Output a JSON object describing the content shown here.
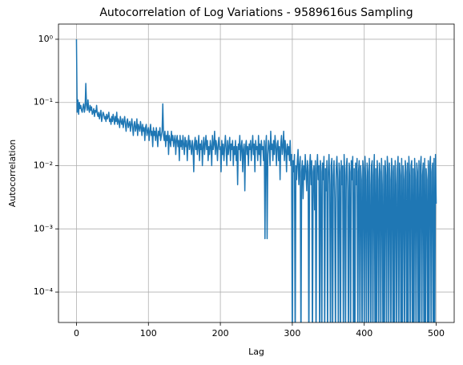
{
  "chart_data": {
    "type": "line",
    "title": "Autocorrelation of Log Variations - 9589616us Sampling",
    "x_label": "Lag",
    "y_label": "Autocorrelation",
    "log_y": true,
    "grid": true,
    "xlim": [
      -25,
      525
    ],
    "xticks": [
      0,
      100,
      200,
      300,
      400,
      500
    ],
    "ylim": [
      3.3e-05,
      1.74
    ],
    "yticks": [
      {
        "value": 0.0001,
        "label": "10⁻⁴"
      },
      {
        "value": 0.001,
        "label": "10⁻³"
      },
      {
        "value": 0.01,
        "label": "10⁻²"
      },
      {
        "value": 0.1,
        "label": "10⁻¹"
      },
      {
        "value": 1,
        "label": "10⁰"
      }
    ],
    "x": [
      0,
      1,
      2,
      3,
      4,
      5,
      6,
      7,
      8,
      9,
      10,
      11,
      12,
      13,
      14,
      15,
      16,
      17,
      18,
      19,
      20,
      21,
      22,
      23,
      24,
      25,
      26,
      27,
      28,
      29,
      30,
      31,
      32,
      33,
      34,
      35,
      36,
      37,
      38,
      39,
      40,
      41,
      42,
      43,
      44,
      45,
      46,
      47,
      48,
      49,
      50,
      51,
      52,
      53,
      54,
      55,
      56,
      57,
      58,
      59,
      60,
      61,
      62,
      63,
      64,
      65,
      66,
      67,
      68,
      69,
      70,
      71,
      72,
      73,
      74,
      75,
      76,
      77,
      78,
      79,
      80,
      81,
      82,
      83,
      84,
      85,
      86,
      87,
      88,
      89,
      90,
      91,
      92,
      93,
      94,
      95,
      96,
      97,
      98,
      99,
      100,
      101,
      102,
      103,
      104,
      105,
      106,
      107,
      108,
      109,
      110,
      111,
      112,
      113,
      114,
      115,
      116,
      117,
      118,
      119,
      120,
      121,
      122,
      123,
      124,
      125,
      126,
      127,
      128,
      129,
      130,
      131,
      132,
      133,
      134,
      135,
      136,
      137,
      138,
      139,
      140,
      141,
      142,
      143,
      144,
      145,
      146,
      147,
      148,
      149,
      150,
      151,
      152,
      153,
      154,
      155,
      156,
      157,
      158,
      159,
      160,
      161,
      162,
      163,
      164,
      165,
      166,
      167,
      168,
      169,
      170,
      171,
      172,
      173,
      174,
      175,
      176,
      177,
      178,
      179,
      180,
      181,
      182,
      183,
      184,
      185,
      186,
      187,
      188,
      189,
      190,
      191,
      192,
      193,
      194,
      195,
      196,
      197,
      198,
      199,
      200,
      201,
      202,
      203,
      204,
      205,
      206,
      207,
      208,
      209,
      210,
      211,
      212,
      213,
      214,
      215,
      216,
      217,
      218,
      219,
      220,
      221,
      222,
      223,
      224,
      225,
      226,
      227,
      228,
      229,
      230,
      231,
      232,
      233,
      234,
      235,
      236,
      237,
      238,
      239,
      240,
      241,
      242,
      243,
      244,
      245,
      246,
      247,
      248,
      249,
      250,
      251,
      252,
      253,
      254,
      255,
      256,
      257,
      258,
      259,
      260,
      261,
      262,
      263,
      264,
      265,
      266,
      267,
      268,
      269,
      270,
      271,
      272,
      273,
      274,
      275,
      276,
      277,
      278,
      279,
      280,
      281,
      282,
      283,
      284,
      285,
      286,
      287,
      288,
      289,
      290,
      291,
      292,
      293,
      294,
      295,
      296,
      297,
      298,
      299,
      300,
      301,
      302,
      303,
      304,
      305,
      306,
      307,
      308,
      309,
      310,
      311,
      312,
      313,
      314,
      315,
      316,
      317,
      318,
      319,
      320,
      321,
      322,
      323,
      324,
      325,
      326,
      327,
      328,
      329,
      330,
      331,
      332,
      333,
      334,
      335,
      336,
      337,
      338,
      339,
      340,
      341,
      342,
      343,
      344,
      345,
      346,
      347,
      348,
      349,
      350,
      351,
      352,
      353,
      354,
      355,
      356,
      357,
      358,
      359,
      360,
      361,
      362,
      363,
      364,
      365,
      366,
      367,
      368,
      369,
      370,
      371,
      372,
      373,
      374,
      375,
      376,
      377,
      378,
      379,
      380,
      381,
      382,
      383,
      384,
      385,
      386,
      387,
      388,
      389,
      390,
      391,
      392,
      393,
      394,
      395,
      396,
      397,
      398,
      399,
      400,
      401,
      402,
      403,
      404,
      405,
      406,
      407,
      408,
      409,
      410,
      411,
      412,
      413,
      414,
      415,
      416,
      417,
      418,
      419,
      420,
      421,
      422,
      423,
      424,
      425,
      426,
      427,
      428,
      429,
      430,
      431,
      432,
      433,
      434,
      435,
      436,
      437,
      438,
      439,
      440,
      441,
      442,
      443,
      444,
      445,
      446,
      447,
      448,
      449,
      450,
      451,
      452,
      453,
      454,
      455,
      456,
      457,
      458,
      459,
      460,
      461,
      462,
      463,
      464,
      465,
      466,
      467,
      468,
      469,
      470,
      471,
      472,
      473,
      474,
      475,
      476,
      477,
      478,
      479,
      480,
      481,
      482,
      483,
      484,
      485,
      486,
      487,
      488,
      489,
      490,
      491,
      492,
      493,
      494,
      495,
      496,
      497,
      498,
      499,
      500
    ],
    "series": [
      {
        "name": "Autocorrelation",
        "color": "#1f77b4",
        "values": [
          1,
          0.07,
          0.11,
          0.065,
          0.1,
          0.08,
          0.09,
          0.075,
          0.07,
          0.085,
          0.095,
          0.07,
          0.08,
          0.2,
          0.09,
          0.075,
          0.11,
          0.08,
          0.07,
          0.09,
          0.075,
          0.085,
          0.065,
          0.07,
          0.08,
          0.06,
          0.075,
          0.07,
          0.09,
          0.065,
          0.06,
          0.07,
          0.055,
          0.065,
          0.075,
          0.05,
          0.06,
          0.07,
          0.065,
          0.055,
          0.06,
          0.05,
          0.065,
          0.055,
          0.06,
          0.07,
          0.05,
          0.055,
          0.045,
          0.06,
          0.05,
          0.065,
          0.055,
          0.045,
          0.06,
          0.05,
          0.07,
          0.045,
          0.055,
          0.05,
          0.04,
          0.06,
          0.05,
          0.045,
          0.055,
          0.04,
          0.05,
          0.06,
          0.045,
          0.035,
          0.05,
          0.055,
          0.04,
          0.045,
          0.05,
          0.035,
          0.045,
          0.055,
          0.04,
          0.03,
          0.045,
          0.05,
          0.035,
          0.04,
          0.055,
          0.03,
          0.045,
          0.04,
          0.035,
          0.05,
          0.04,
          0.03,
          0.045,
          0.035,
          0.04,
          0.025,
          0.04,
          0.045,
          0.03,
          0.035,
          0.04,
          0.025,
          0.035,
          0.045,
          0.03,
          0.035,
          0.02,
          0.04,
          0.03,
          0.035,
          0.025,
          0.04,
          0.03,
          0.02,
          0.035,
          0.03,
          0.04,
          0.025,
          0.03,
          0.035,
          0.095,
          0.03,
          0.025,
          0.035,
          0.02,
          0.03,
          0.025,
          0.035,
          0.015,
          0.03,
          0.025,
          0.02,
          0.035,
          0.025,
          0.03,
          0.02,
          0.025,
          0.03,
          0.015,
          0.025,
          0.03,
          0.02,
          0.025,
          0.012,
          0.03,
          0.02,
          0.025,
          0.018,
          0.03,
          0.022,
          0.015,
          0.028,
          0.02,
          0.025,
          0.012,
          0.022,
          0.03,
          0.018,
          0.025,
          0.02,
          0.015,
          0.025,
          0.02,
          0.008,
          0.022,
          0.028,
          0.018,
          0.025,
          0.015,
          0.02,
          0.03,
          0.012,
          0.022,
          0.018,
          0.025,
          0.01,
          0.02,
          0.028,
          0.015,
          0.022,
          0.03,
          0.018,
          0.025,
          0.012,
          0.02,
          0.015,
          0.025,
          0.02,
          0.01,
          0.03,
          0.018,
          0.022,
          0.035,
          0.015,
          0.025,
          0.02,
          0.012,
          0.022,
          0.028,
          0.018,
          0.02,
          0.008,
          0.025,
          0.015,
          0.022,
          0.012,
          0.02,
          0.03,
          0.018,
          0.01,
          0.025,
          0.015,
          0.02,
          0.028,
          0.012,
          0.022,
          0.018,
          0.025,
          0.01,
          0.02,
          0.015,
          0.025,
          0.012,
          0.02,
          0.005,
          0.022,
          0.018,
          0.03,
          0.012,
          0.02,
          0.025,
          0.008,
          0.018,
          0.022,
          0.004,
          0.02,
          0.025,
          0.015,
          0.02,
          0.01,
          0.022,
          0.018,
          0.025,
          0.012,
          0.02,
          0.03,
          0.015,
          0.022,
          0.008,
          0.025,
          0.018,
          0.02,
          0.012,
          0.03,
          0.015,
          0.022,
          0.01,
          0.025,
          0.018,
          0.02,
          0.012,
          0.025,
          0.0007,
          0.02,
          0.03,
          0.0007,
          0.015,
          0.025,
          0.02,
          0.01,
          0.035,
          0.018,
          0.022,
          0.012,
          0.025,
          0.015,
          0.03,
          0.02,
          0.01,
          0.022,
          0.025,
          0.012,
          0.02,
          0.006,
          0.022,
          0.03,
          0.015,
          0.02,
          0.035,
          0.012,
          0.025,
          0.018,
          0.008,
          0.022,
          0.015,
          0.02,
          0.012,
          0.025,
          0.01,
          0.015,
          1e-05,
          0.012,
          0.008,
          0.015,
          1e-05,
          0.01,
          0.006,
          0.012,
          0.018,
          0.005,
          0.01,
          0.014,
          1e-05,
          0.008,
          0.012,
          0.003,
          0.01,
          0.006,
          0.015,
          0.008,
          0.004,
          0.012,
          0.008,
          1e-05,
          0.01,
          0.015,
          0.005,
          0.012,
          1e-05,
          0.008,
          0.01,
          0.002,
          0.012,
          1e-05,
          0.009,
          0.015,
          0.006,
          0.01,
          1e-05,
          0.012,
          0.008,
          1e-05,
          0.011,
          0.006,
          0.014,
          1e-05,
          0.009,
          0.004,
          0.012,
          1e-05,
          0.008,
          0.015,
          0.005,
          1e-05,
          0.01,
          0.013,
          1e-05,
          0.007,
          0.012,
          0.003,
          1e-05,
          0.009,
          0.014,
          0.006,
          1e-05,
          0.011,
          0.008,
          1e-05,
          0.012,
          0.005,
          0.01,
          1e-05,
          0.015,
          0.007,
          1e-05,
          0.009,
          0.013,
          0.004,
          1e-05,
          0.011,
          0.008,
          1e-05,
          0.012,
          0.006,
          0.014,
          1e-05,
          0.009,
          1e-05,
          0.011,
          0.005,
          0.013,
          1e-05,
          0.008,
          0.012,
          1e-05,
          0.01,
          0.006,
          1e-05,
          0.012,
          0.009,
          1e-05,
          0.014,
          0.006,
          1e-05,
          0.011,
          0.008,
          1e-05,
          0.013,
          0.005,
          1e-05,
          0.01,
          0.012,
          1e-05,
          0.007,
          0.015,
          1e-05,
          0.009,
          1e-05,
          0.012,
          0.006,
          1e-05,
          0.011,
          0.008,
          1e-05,
          0.013,
          0.005,
          1e-05,
          0.01,
          1e-05,
          0.012,
          0.007,
          1e-05,
          0.014,
          0.009,
          1e-05,
          0.011,
          0.006,
          1e-05,
          0.013,
          0.008,
          1e-05,
          0.01,
          1e-05,
          0.012,
          0.005,
          1e-05,
          0.009,
          0.014,
          1e-05,
          0.011,
          0.007,
          1e-05,
          0.013,
          1e-05,
          0.01,
          0.006,
          1e-05,
          0.012,
          0.008,
          1e-05,
          0.011,
          1e-05,
          0.014,
          0.007,
          1e-05,
          0.01,
          0.012,
          1e-05,
          0.009,
          1e-05,
          0.013,
          0.006,
          1e-05,
          0.011,
          0.008,
          1e-05,
          0.012,
          1e-05,
          0.01,
          0.014,
          1e-05,
          0.007,
          0.011,
          1e-05,
          0.013,
          1e-05,
          0.009,
          0.006,
          1e-05,
          0.012,
          1e-05,
          0.01,
          0.014,
          1e-05,
          0.008,
          0.011,
          1e-05,
          0.013,
          1e-05,
          0.015,
          0.0025
        ]
      }
    ]
  }
}
